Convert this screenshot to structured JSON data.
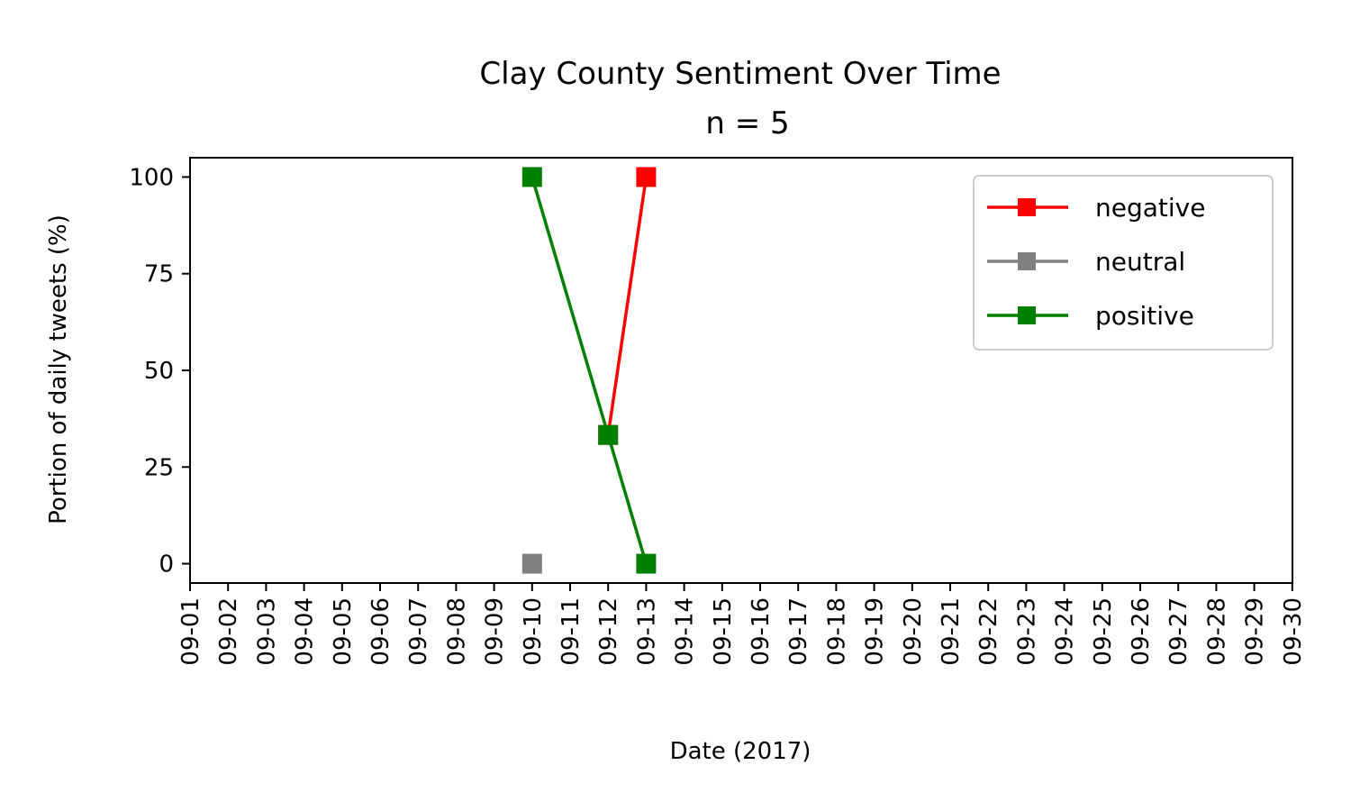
{
  "chart_data": {
    "type": "line",
    "title": "Clay County Sentiment Over Time",
    "subtitle": "n = 5",
    "xlabel": "Date (2017)",
    "ylabel": "Portion of daily tweets (%)",
    "ylim": [
      -5,
      105
    ],
    "yticks": [
      0,
      25,
      50,
      75,
      100
    ],
    "categories": [
      "09-01",
      "09-02",
      "09-03",
      "09-04",
      "09-05",
      "09-06",
      "09-07",
      "09-08",
      "09-09",
      "09-10",
      "09-11",
      "09-12",
      "09-13",
      "09-14",
      "09-15",
      "09-16",
      "09-17",
      "09-18",
      "09-19",
      "09-20",
      "09-21",
      "09-22",
      "09-23",
      "09-24",
      "09-25",
      "09-26",
      "09-27",
      "09-28",
      "09-29",
      "09-30"
    ],
    "grid": false,
    "legend_position": "top-right",
    "series": [
      {
        "name": "negative",
        "color": "#ff0000",
        "marker": "square",
        "points": [
          {
            "x": "09-12",
            "y": 33.3
          },
          {
            "x": "09-13",
            "y": 100
          }
        ]
      },
      {
        "name": "neutral",
        "color": "#808080",
        "marker": "square",
        "points": [
          {
            "x": "09-10",
            "y": 0
          }
        ]
      },
      {
        "name": "positive",
        "color": "#008000",
        "marker": "square",
        "points": [
          {
            "x": "09-10",
            "y": 100
          },
          {
            "x": "09-12",
            "y": 33.3
          },
          {
            "x": "09-13",
            "y": 0
          }
        ]
      }
    ]
  }
}
